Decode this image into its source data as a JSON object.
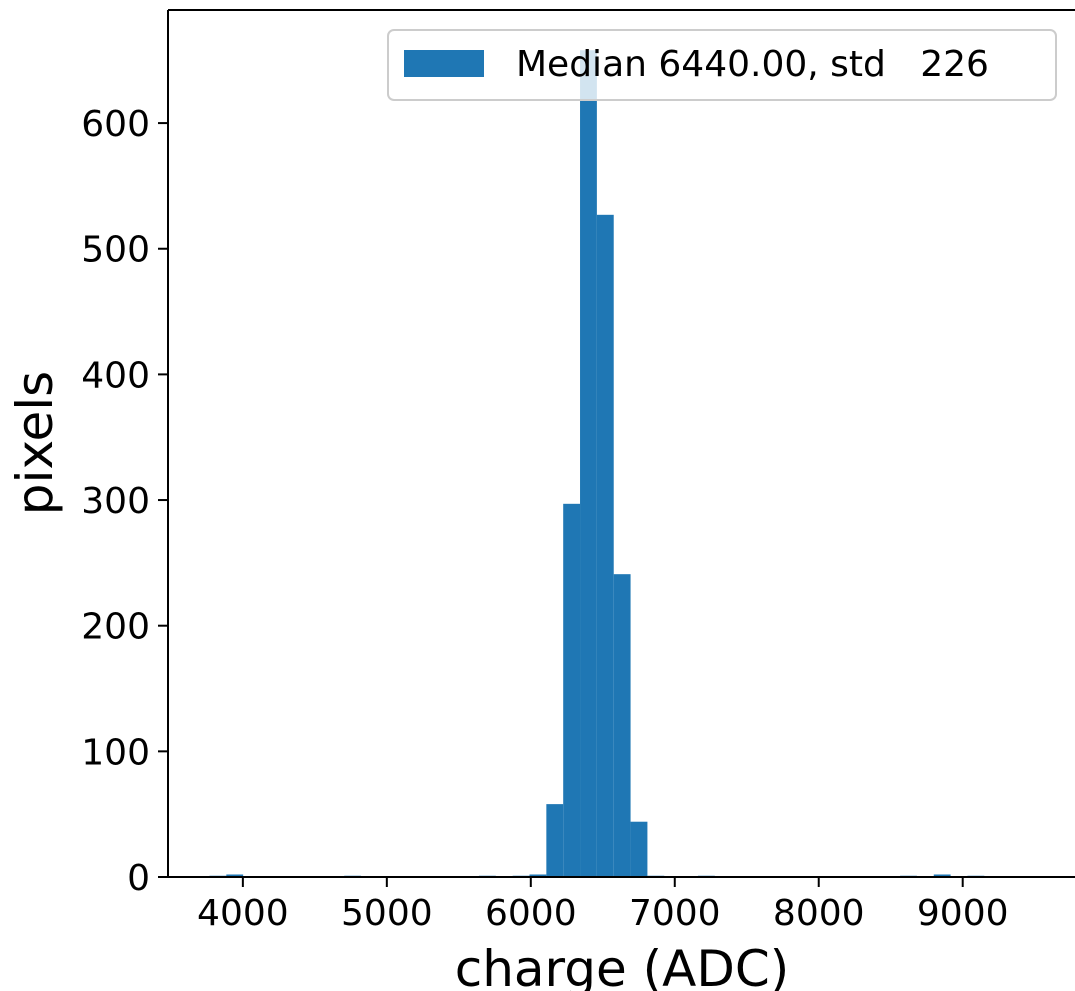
{
  "chart_data": {
    "type": "bar",
    "title": "",
    "xlabel": "charge (ADC)",
    "ylabel": "pixels",
    "xlim": [
      3480,
      9780
    ],
    "ylim": [
      0,
      690
    ],
    "xticks": [
      4000,
      5000,
      6000,
      7000,
      8000,
      9000
    ],
    "yticks": [
      0,
      100,
      200,
      300,
      400,
      500,
      600
    ],
    "bin_width": 117,
    "bin_starts": [
      3768,
      3885,
      4002,
      4119,
      4236,
      4353,
      4470,
      4587,
      4704,
      4821,
      4938,
      5055,
      5172,
      5289,
      5406,
      5523,
      5640,
      5757,
      5874,
      5991,
      6108,
      6225,
      6342,
      6459,
      6576,
      6693,
      6810,
      6927,
      7044,
      7161,
      7278,
      7395,
      7512,
      7629,
      7746,
      7863,
      7980,
      8097,
      8214,
      8331,
      8448,
      8565,
      8682,
      8799,
      8916,
      9033,
      9150,
      9267,
      9384,
      9501
    ],
    "values": [
      1,
      2,
      0,
      0,
      0,
      0,
      0,
      0,
      1,
      0,
      0,
      0,
      0,
      0,
      0,
      0,
      1,
      0,
      1,
      2,
      58,
      297,
      658,
      527,
      241,
      44,
      1,
      0,
      0,
      1,
      0,
      0,
      0,
      0,
      0,
      0,
      0,
      0,
      0,
      0,
      0,
      1,
      0,
      2,
      0,
      1,
      0,
      0,
      0,
      0
    ],
    "series": [
      {
        "name": "Median 6440.00, std   226",
        "color": "#1f77b4"
      }
    ],
    "grid": false,
    "legend_position": "top-right"
  }
}
